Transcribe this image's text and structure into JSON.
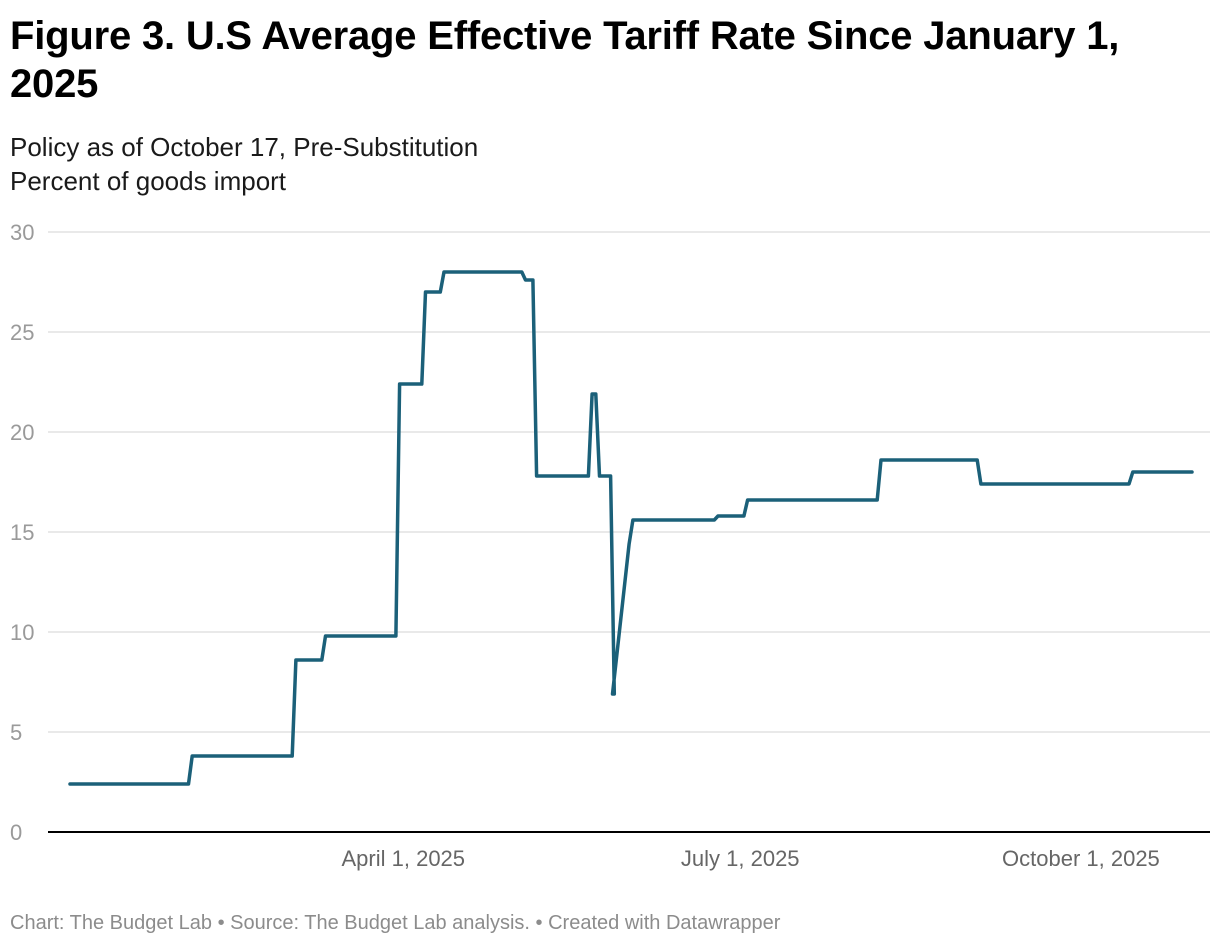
{
  "title": "Figure 3. U.S Average Effective Tariff Rate Since January 1, 2025",
  "subtitle_lines": [
    "Policy as of October 17, Pre-Substitution",
    "Percent of goods import"
  ],
  "footer": {
    "chart_credit": "Chart: The Budget Lab",
    "source": "Source: The Budget Lab analysis.",
    "created_with": "Created with Datawrapper",
    "separator": "•"
  },
  "colors": {
    "line": "#1b6079",
    "grid": "#e2e2e2",
    "baseline": "#000000",
    "tick_text": "#9a9a9a",
    "x_tick_text": "#666666"
  },
  "chart_data": {
    "type": "line",
    "title": "Figure 3. U.S Average Effective Tariff Rate Since January 1, 2025",
    "xlabel": "",
    "ylabel": "Percent of goods import",
    "xlim": [
      0,
      300
    ],
    "ylim": [
      0,
      30
    ],
    "y_ticks": [
      0,
      5,
      10,
      15,
      20,
      25,
      30
    ],
    "x_ticks": [
      {
        "day": 90,
        "label": "April 1, 2025"
      },
      {
        "day": 181,
        "label": "July 1, 2025"
      },
      {
        "day": 273,
        "label": "October 1, 2025"
      }
    ],
    "grid": true,
    "series": [
      {
        "name": "U.S. average effective tariff rate",
        "x_unit": "days since January 1, 2025",
        "x": [
          0,
          32,
          33,
          60,
          61,
          68,
          69,
          88,
          89,
          95,
          96,
          100,
          101,
          104,
          105,
          122,
          123,
          125,
          126,
          129,
          130,
          140,
          141,
          142,
          143,
          146,
          147,
          146.5,
          151,
          151.5,
          152,
          154,
          174,
          175,
          182,
          183,
          218,
          219,
          245,
          246,
          286,
          287,
          303
        ],
        "values": [
          2.4,
          2.4,
          3.8,
          3.8,
          8.6,
          8.6,
          9.8,
          9.8,
          22.4,
          22.4,
          27.0,
          27.0,
          28.0,
          28.0,
          28.0,
          28.0,
          27.6,
          27.6,
          17.8,
          17.8,
          17.8,
          17.8,
          21.9,
          21.9,
          17.8,
          17.8,
          6.9,
          6.9,
          14.4,
          15.0,
          15.6,
          15.6,
          15.6,
          15.8,
          15.8,
          16.6,
          16.6,
          18.6,
          18.6,
          17.4,
          17.4,
          18.0,
          18.0
        ]
      }
    ]
  }
}
